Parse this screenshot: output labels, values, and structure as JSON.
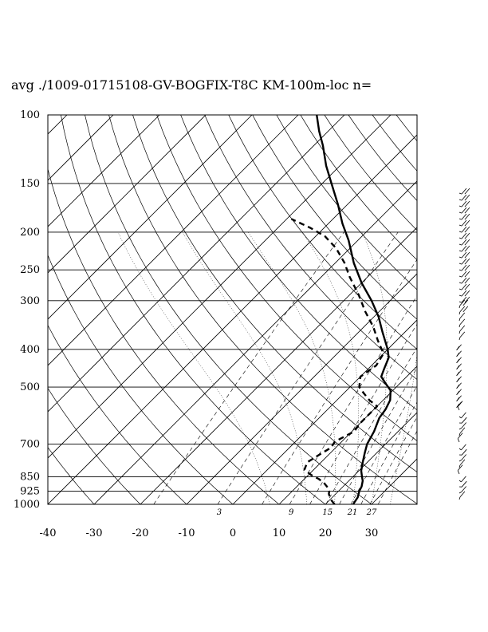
{
  "title": "avg ./1009-01715108-GV-BOGFIX-T8C KM-100m-loc n=",
  "chart_data": {
    "type": "line",
    "subtype": "skew-T log-P diagram",
    "title": "avg ./1009-01715108-GV-BOGFIX-T8C KM-100m-loc n=",
    "xlabel": "",
    "ylabel": "",
    "x_ticks": [
      -40,
      -30,
      -20,
      -10,
      0,
      10,
      20,
      30
    ],
    "x_tick_labels": [
      "-40",
      "-30",
      "-20",
      "-10",
      "0",
      "10",
      "20",
      "30"
    ],
    "xlim": [
      -40,
      40
    ],
    "y_scale": "log (pressure, hPa)",
    "ylim": [
      1000,
      100
    ],
    "pressure_levels": [
      100,
      150,
      200,
      250,
      300,
      400,
      500,
      700,
      850,
      925,
      1000
    ],
    "pressure_labels": [
      "100",
      "150",
      "200",
      "250",
      "300",
      "400",
      "500",
      "700",
      "850",
      "925",
      "1000"
    ],
    "mixing_ratio_labels": [
      "3",
      "9",
      "15",
      "21",
      "27"
    ],
    "mixing_ratio_values": [
      3,
      9,
      15,
      21,
      27
    ],
    "series": [
      {
        "role": "temperature",
        "style": "solid",
        "points": [
          [
            1000,
            26
          ],
          [
            960,
            25.5
          ],
          [
            925,
            24.5
          ],
          [
            900,
            24
          ],
          [
            870,
            23
          ],
          [
            850,
            22
          ],
          [
            820,
            20.5
          ],
          [
            780,
            19
          ],
          [
            740,
            17.5
          ],
          [
            700,
            16
          ],
          [
            650,
            14.8
          ],
          [
            600,
            13
          ],
          [
            570,
            12.5
          ],
          [
            540,
            11.5
          ],
          [
            510,
            9.5
          ],
          [
            490,
            7
          ],
          [
            470,
            4.5
          ],
          [
            450,
            3.5
          ],
          [
            420,
            2
          ],
          [
            400,
            0
          ],
          [
            360,
            -5
          ],
          [
            330,
            -9
          ],
          [
            300,
            -14
          ],
          [
            270,
            -20
          ],
          [
            240,
            -26
          ],
          [
            210,
            -32
          ],
          [
            190,
            -37
          ],
          [
            170,
            -42
          ],
          [
            150,
            -48
          ],
          [
            135,
            -53
          ],
          [
            120,
            -58
          ],
          [
            110,
            -62
          ],
          [
            100,
            -66
          ]
        ]
      },
      {
        "role": "dewpoint",
        "style": "dashed",
        "points": [
          [
            1000,
            22
          ],
          [
            970,
            20
          ],
          [
            940,
            18.5
          ],
          [
            925,
            18
          ],
          [
            900,
            16.5
          ],
          [
            880,
            15
          ],
          [
            860,
            13
          ],
          [
            840,
            10.5
          ],
          [
            815,
            8
          ],
          [
            780,
            7
          ],
          [
            745,
            8
          ],
          [
            715,
            9
          ],
          [
            690,
            8.5
          ],
          [
            650,
            10.5
          ],
          [
            620,
            10
          ],
          [
            590,
            10
          ],
          [
            560,
            10
          ],
          [
            540,
            7
          ],
          [
            520,
            4.5
          ],
          [
            500,
            2
          ],
          [
            470,
            0
          ],
          [
            440,
            1
          ],
          [
            410,
            0
          ],
          [
            380,
            -4
          ],
          [
            350,
            -8
          ],
          [
            320,
            -13
          ],
          [
            290,
            -18
          ],
          [
            260,
            -24
          ],
          [
            240,
            -28
          ],
          [
            220,
            -33
          ],
          [
            205,
            -38
          ],
          [
            195,
            -43
          ],
          [
            185,
            -49
          ]
        ]
      }
    ],
    "wind_barbs": "column of wind barbs at right, 100–1000 hPa",
    "grid": true,
    "legend": "none"
  }
}
